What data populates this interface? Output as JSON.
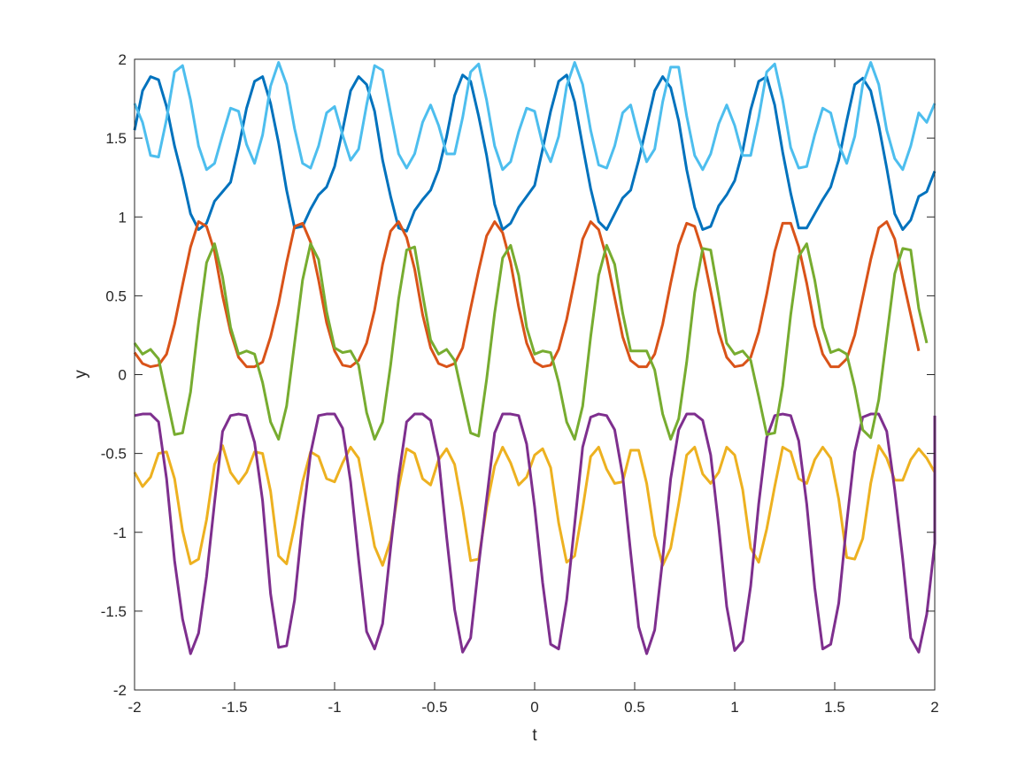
{
  "chart_data": {
    "type": "line",
    "title": "",
    "xlabel": "t",
    "ylabel": "y",
    "xlim": [
      -2,
      2
    ],
    "ylim": [
      -2,
      2
    ],
    "xticks": [
      -2,
      -1.5,
      -1,
      -0.5,
      0,
      0.5,
      1,
      1.5,
      2
    ],
    "xtick_labels": [
      "-2",
      "-1.5",
      "-1",
      "-0.5",
      "0",
      "0.5",
      "1",
      "1.5",
      "2"
    ],
    "yticks": [
      -2,
      -1.5,
      -1,
      -0.5,
      0,
      0.5,
      1,
      1.5,
      2
    ],
    "ytick_labels": [
      "-2",
      "-1.5",
      "-1",
      "-0.5",
      "0",
      "0.5",
      "1",
      "1.5",
      "2"
    ],
    "grid": false,
    "legend": "none",
    "sample_step": 0.04,
    "series": [
      {
        "color": "#0072BD",
        "y": [
          1.55,
          1.8,
          1.89,
          1.87,
          1.7,
          1.45,
          1.25,
          1.02,
          0.92,
          0.96,
          1.1,
          1.16,
          1.22,
          1.44,
          1.69,
          1.86,
          1.89,
          1.72,
          1.47,
          1.17,
          0.93,
          0.94,
          1.05,
          1.14,
          1.19,
          1.32,
          1.55,
          1.8,
          1.89,
          1.84,
          1.67,
          1.36,
          1.13,
          0.93,
          0.91,
          1.04,
          1.11,
          1.17,
          1.3,
          1.51,
          1.77,
          1.9,
          1.86,
          1.64,
          1.39,
          1.08,
          0.92,
          0.96,
          1.06,
          1.13,
          1.2,
          1.43,
          1.67,
          1.86,
          1.9,
          1.73,
          1.45,
          1.18,
          0.97,
          0.92,
          1.02,
          1.12,
          1.17,
          1.36,
          1.58,
          1.8,
          1.89,
          1.82,
          1.61,
          1.3,
          1.06,
          0.92,
          0.94,
          1.07,
          1.14,
          1.23,
          1.42,
          1.68,
          1.86,
          1.89,
          1.71,
          1.41,
          1.15,
          0.93,
          0.93,
          1.02,
          1.11,
          1.19,
          1.36,
          1.61,
          1.84,
          1.88,
          1.8,
          1.58,
          1.31,
          1.02,
          0.92,
          0.98,
          1.13,
          1.16,
          1.29
        ]
      },
      {
        "color": "#D95319",
        "y": [
          0.14,
          0.07,
          0.05,
          0.06,
          0.13,
          0.32,
          0.57,
          0.81,
          0.97,
          0.94,
          0.78,
          0.5,
          0.27,
          0.11,
          0.05,
          0.05,
          0.08,
          0.24,
          0.45,
          0.71,
          0.94,
          0.96,
          0.84,
          0.6,
          0.33,
          0.15,
          0.06,
          0.05,
          0.09,
          0.2,
          0.41,
          0.7,
          0.91,
          0.97,
          0.87,
          0.67,
          0.38,
          0.17,
          0.07,
          0.05,
          0.07,
          0.17,
          0.42,
          0.66,
          0.88,
          0.97,
          0.9,
          0.71,
          0.43,
          0.2,
          0.08,
          0.05,
          0.06,
          0.16,
          0.35,
          0.6,
          0.86,
          0.97,
          0.92,
          0.74,
          0.49,
          0.24,
          0.09,
          0.05,
          0.05,
          0.13,
          0.32,
          0.58,
          0.82,
          0.96,
          0.94,
          0.78,
          0.53,
          0.27,
          0.11,
          0.05,
          0.06,
          0.11,
          0.27,
          0.51,
          0.78,
          0.96,
          0.96,
          0.81,
          0.58,
          0.31,
          0.13,
          0.05,
          0.05,
          0.1,
          0.25,
          0.49,
          0.73,
          0.93,
          0.97,
          0.86,
          0.61,
          0.38,
          0.15
        ]
      },
      {
        "color": "#EDB120",
        "y": [
          -0.62,
          -0.71,
          -0.65,
          -0.5,
          -0.49,
          -0.66,
          -0.99,
          -1.2,
          -1.17,
          -0.92,
          -0.57,
          -0.45,
          -0.62,
          -0.69,
          -0.62,
          -0.49,
          -0.5,
          -0.74,
          -1.15,
          -1.2,
          -0.96,
          -0.68,
          -0.49,
          -0.52,
          -0.66,
          -0.68,
          -0.56,
          -0.46,
          -0.53,
          -0.81,
          -1.09,
          -1.21,
          -1.05,
          -0.72,
          -0.47,
          -0.5,
          -0.66,
          -0.7,
          -0.54,
          -0.47,
          -0.57,
          -0.85,
          -1.18,
          -1.17,
          -0.84,
          -0.58,
          -0.46,
          -0.56,
          -0.7,
          -0.65,
          -0.51,
          -0.47,
          -0.59,
          -0.94,
          -1.19,
          -1.15,
          -0.85,
          -0.52,
          -0.46,
          -0.6,
          -0.69,
          -0.68,
          -0.48,
          -0.48,
          -0.69,
          -1.02,
          -1.21,
          -1.1,
          -0.82,
          -0.51,
          -0.46,
          -0.63,
          -0.69,
          -0.62,
          -0.46,
          -0.51,
          -0.73,
          -1.1,
          -1.19,
          -0.98,
          -0.71,
          -0.46,
          -0.49,
          -0.66,
          -0.69,
          -0.54,
          -0.46,
          -0.53,
          -0.79,
          -1.16,
          -1.17,
          -1.04,
          -0.69,
          -0.45,
          -0.53,
          -0.67,
          -0.67,
          -0.54,
          -0.47,
          -0.53,
          -0.62
        ]
      },
      {
        "color": "#7E2F8E",
        "y": [
          -0.26,
          -0.25,
          -0.25,
          -0.3,
          -0.66,
          -1.18,
          -1.55,
          -1.77,
          -1.64,
          -1.28,
          -0.81,
          -0.36,
          -0.26,
          -0.25,
          -0.26,
          -0.43,
          -0.8,
          -1.39,
          -1.73,
          -1.72,
          -1.43,
          -0.93,
          -0.5,
          -0.26,
          -0.25,
          -0.25,
          -0.34,
          -0.68,
          -1.17,
          -1.63,
          -1.74,
          -1.58,
          -1.1,
          -0.65,
          -0.3,
          -0.25,
          -0.25,
          -0.29,
          -0.53,
          -1.03,
          -1.49,
          -1.76,
          -1.67,
          -1.21,
          -0.79,
          -0.37,
          -0.25,
          -0.25,
          -0.26,
          -0.44,
          -0.84,
          -1.32,
          -1.71,
          -1.74,
          -1.43,
          -0.95,
          -0.46,
          -0.27,
          -0.25,
          -0.26,
          -0.35,
          -0.64,
          -1.13,
          -1.6,
          -1.77,
          -1.62,
          -1.17,
          -0.66,
          -0.35,
          -0.25,
          -0.25,
          -0.29,
          -0.51,
          -0.96,
          -1.47,
          -1.75,
          -1.69,
          -1.34,
          -0.82,
          -0.4,
          -0.26,
          -0.25,
          -0.26,
          -0.42,
          -0.82,
          -1.35,
          -1.74,
          -1.71,
          -1.45,
          -0.94,
          -0.49,
          -0.27,
          -0.25,
          -0.25,
          -0.36,
          -0.73,
          -1.17,
          -1.67,
          -1.76,
          -1.52,
          -1.07,
          -0.63,
          -0.32,
          -0.26
        ]
      },
      {
        "color": "#77AC30",
        "y": [
          0.2,
          0.13,
          0.16,
          0.1,
          -0.14,
          -0.38,
          -0.37,
          -0.11,
          0.33,
          0.71,
          0.83,
          0.62,
          0.3,
          0.13,
          0.15,
          0.13,
          -0.05,
          -0.3,
          -0.41,
          -0.2,
          0.2,
          0.6,
          0.83,
          0.73,
          0.4,
          0.17,
          0.14,
          0.15,
          0.06,
          -0.24,
          -0.41,
          -0.3,
          0.06,
          0.48,
          0.79,
          0.81,
          0.51,
          0.22,
          0.13,
          0.16,
          0.09,
          -0.14,
          -0.37,
          -0.39,
          -0.03,
          0.39,
          0.74,
          0.82,
          0.63,
          0.3,
          0.13,
          0.15,
          0.14,
          -0.05,
          -0.3,
          -0.41,
          -0.2,
          0.24,
          0.63,
          0.82,
          0.7,
          0.39,
          0.15,
          0.15,
          0.15,
          0.03,
          -0.25,
          -0.41,
          -0.28,
          0.08,
          0.52,
          0.8,
          0.79,
          0.5,
          0.2,
          0.13,
          0.15,
          0.09,
          -0.14,
          -0.38,
          -0.37,
          -0.07,
          0.38,
          0.75,
          0.83,
          0.6,
          0.3,
          0.14,
          0.16,
          0.13,
          -0.08,
          -0.35,
          -0.4,
          -0.16,
          0.24,
          0.64,
          0.8,
          0.79,
          0.42,
          0.2
        ]
      },
      {
        "color": "#4DBEEE",
        "y": [
          1.72,
          1.6,
          1.39,
          1.38,
          1.62,
          1.92,
          1.96,
          1.74,
          1.45,
          1.3,
          1.34,
          1.52,
          1.69,
          1.67,
          1.46,
          1.34,
          1.52,
          1.83,
          1.98,
          1.84,
          1.56,
          1.34,
          1.31,
          1.45,
          1.66,
          1.7,
          1.52,
          1.36,
          1.43,
          1.71,
          1.96,
          1.93,
          1.66,
          1.4,
          1.31,
          1.4,
          1.6,
          1.71,
          1.58,
          1.4,
          1.4,
          1.63,
          1.92,
          1.97,
          1.74,
          1.45,
          1.3,
          1.35,
          1.54,
          1.69,
          1.67,
          1.46,
          1.35,
          1.51,
          1.83,
          1.98,
          1.84,
          1.55,
          1.33,
          1.31,
          1.45,
          1.66,
          1.71,
          1.51,
          1.35,
          1.43,
          1.73,
          1.95,
          1.95,
          1.64,
          1.39,
          1.3,
          1.4,
          1.59,
          1.71,
          1.58,
          1.39,
          1.39,
          1.63,
          1.92,
          1.97,
          1.74,
          1.44,
          1.31,
          1.32,
          1.52,
          1.69,
          1.66,
          1.46,
          1.34,
          1.51,
          1.84,
          1.98,
          1.84,
          1.55,
          1.37,
          1.3,
          1.45,
          1.66,
          1.6,
          1.72
        ]
      }
    ]
  }
}
